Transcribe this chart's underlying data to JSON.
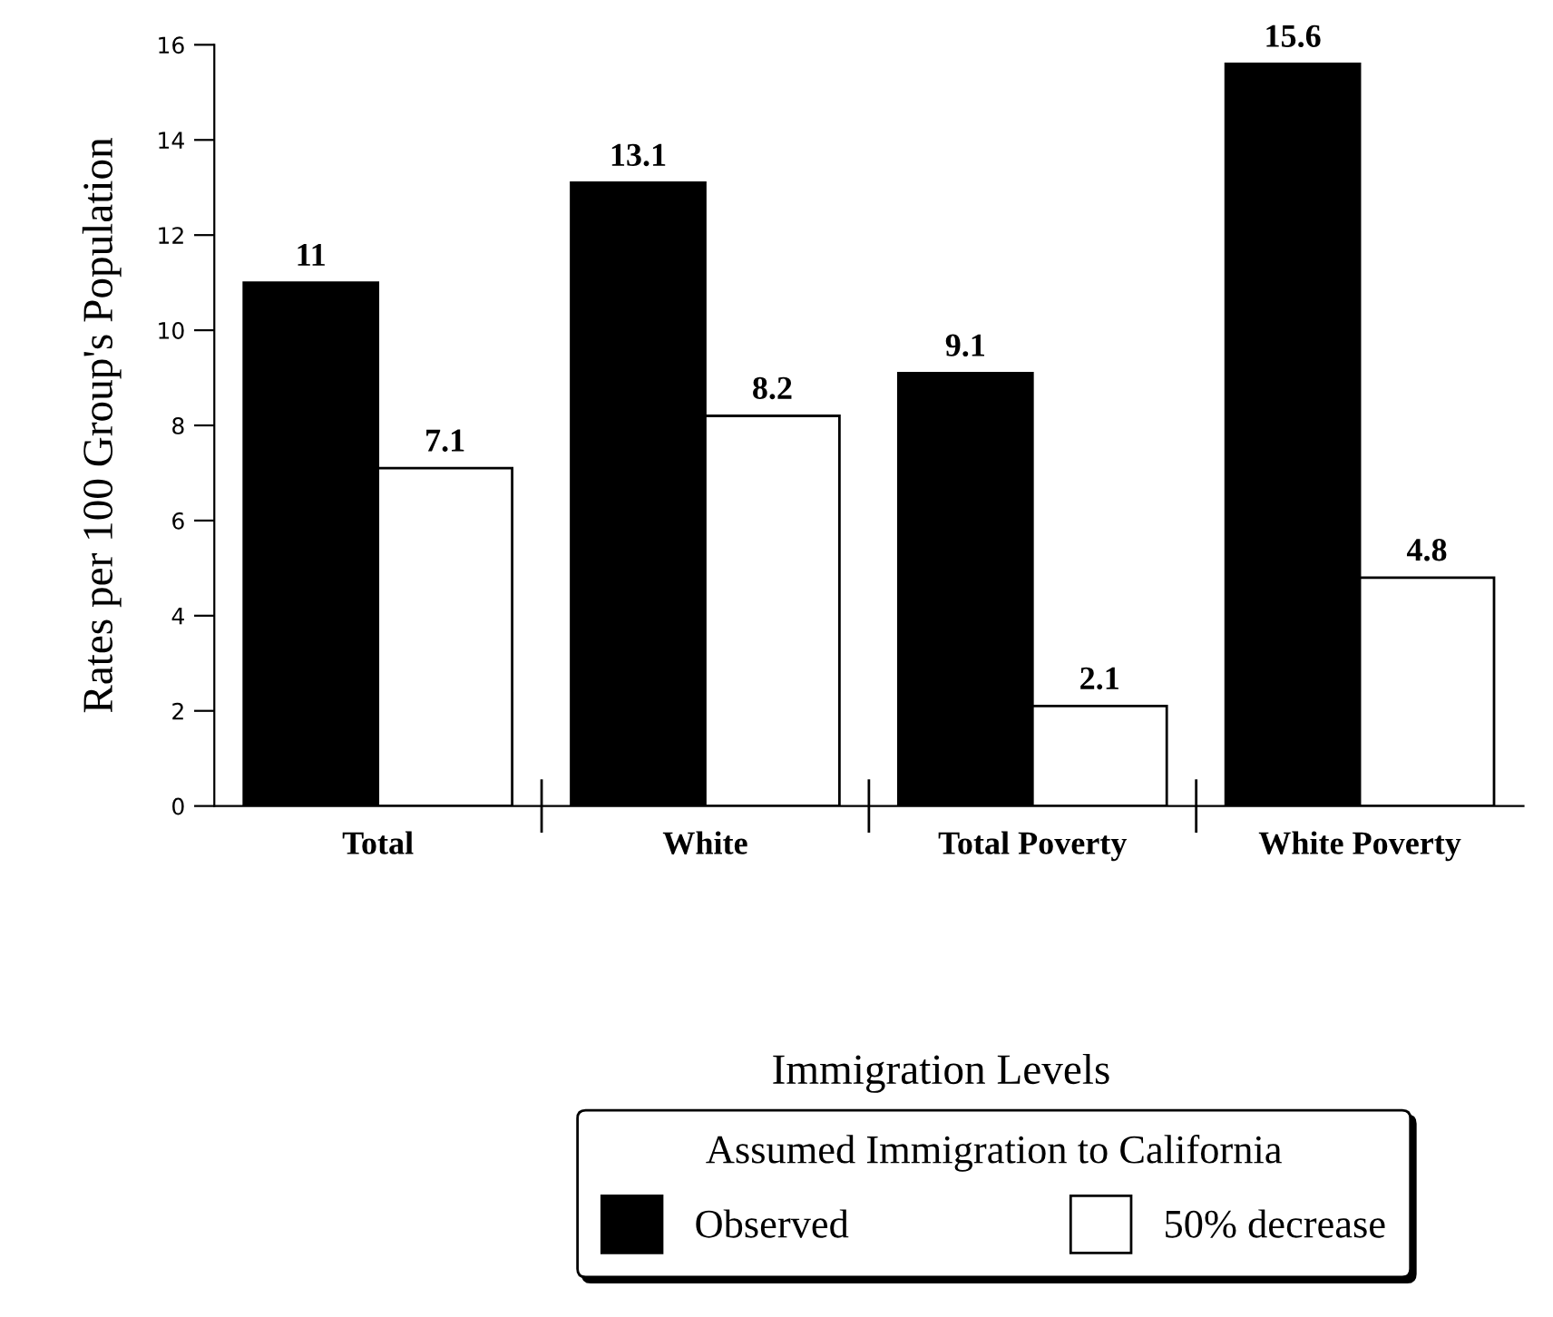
{
  "chart_data": {
    "type": "bar",
    "ylabel": "Rates per 100 Group's Population",
    "xlabel": "Immigration Levels",
    "categories": [
      "Total",
      "White",
      "Total Poverty",
      "White Poverty"
    ],
    "series": [
      {
        "name": "Observed",
        "color": "#000000",
        "values": [
          11,
          13.1,
          9.1,
          15.6
        ]
      },
      {
        "name": "50% decrease",
        "color": "#ffffff",
        "values": [
          7.1,
          8.2,
          2.1,
          4.8
        ]
      }
    ],
    "legend_title": "Assumed Immigration to California",
    "legend": "bottom",
    "ylim": [
      0,
      16
    ],
    "yticks": [
      0,
      2,
      4,
      6,
      8,
      10,
      12,
      14,
      16
    ],
    "grid": false,
    "data_labels": true
  }
}
